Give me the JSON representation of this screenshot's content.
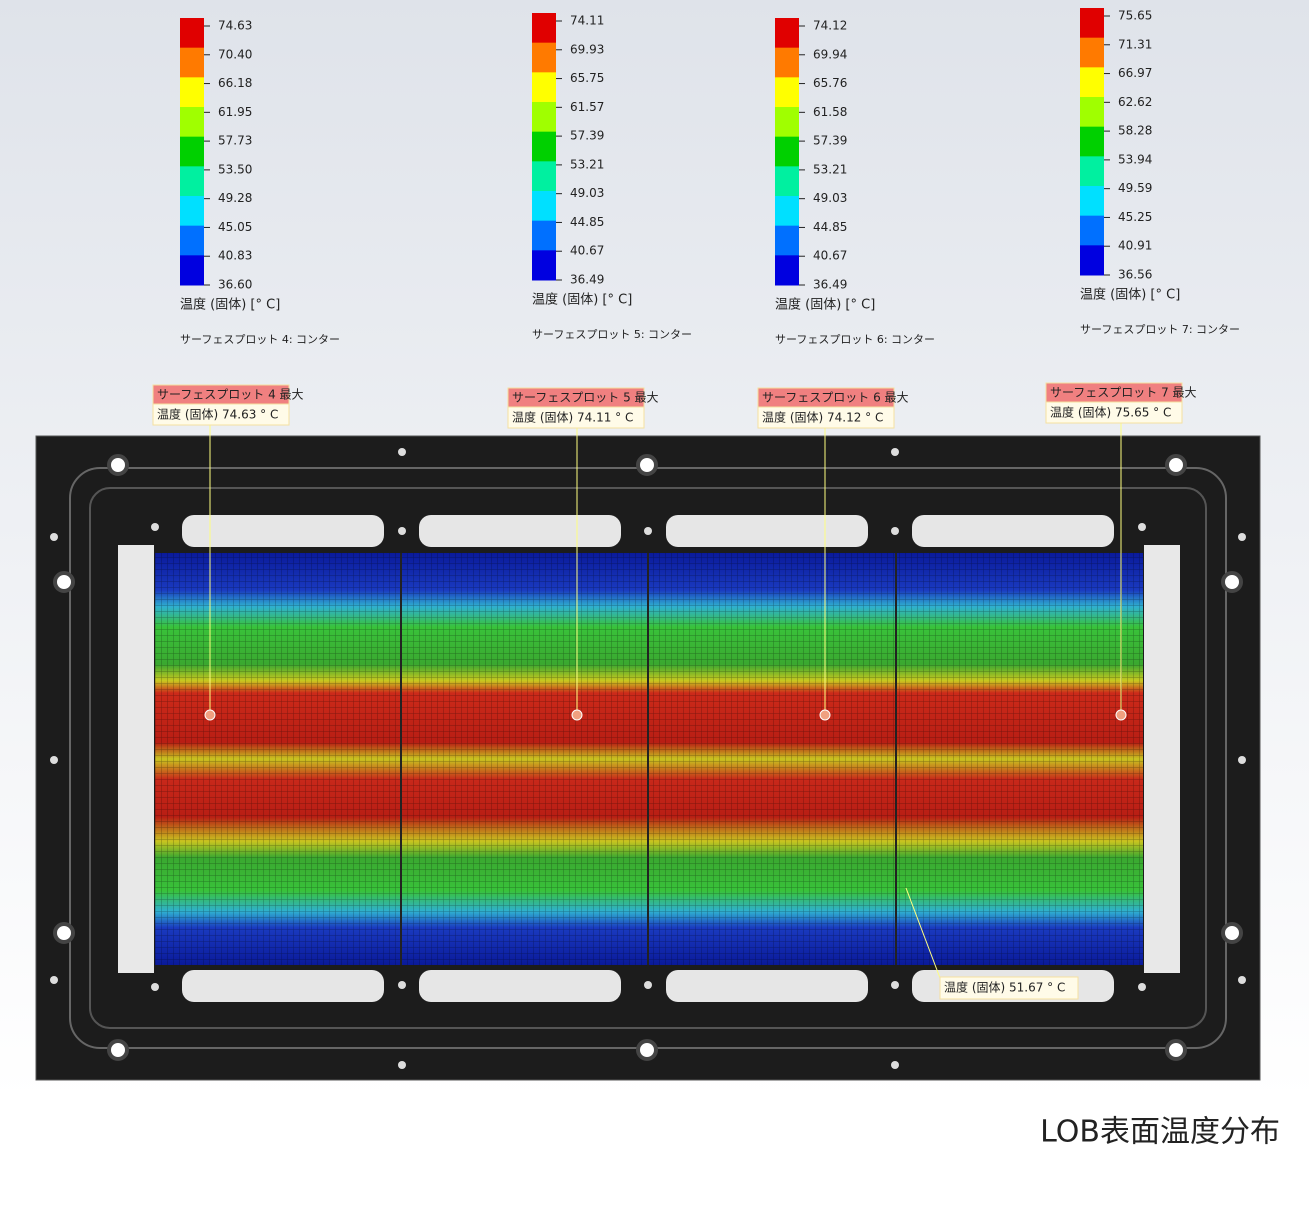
{
  "legends": [
    {
      "ticks": [
        "74.63",
        "70.40",
        "66.18",
        "61.95",
        "57.73",
        "53.50",
        "49.28",
        "45.05",
        "40.83",
        "36.60"
      ],
      "unit": "温度 (固体) [° C]",
      "plot": "サーフェスプロット 4: コンター"
    },
    {
      "ticks": [
        "74.11",
        "69.93",
        "65.75",
        "61.57",
        "57.39",
        "53.21",
        "49.03",
        "44.85",
        "40.67",
        "36.49"
      ],
      "unit": "温度 (固体) [° C]",
      "plot": "サーフェスプロット 5: コンター"
    },
    {
      "ticks": [
        "74.12",
        "69.94",
        "65.76",
        "61.58",
        "57.39",
        "53.21",
        "49.03",
        "44.85",
        "40.67",
        "36.49"
      ],
      "unit": "温度 (固体) [° C]",
      "plot": "サーフェスプロット 6: コンター"
    },
    {
      "ticks": [
        "75.65",
        "71.31",
        "66.97",
        "62.62",
        "58.28",
        "53.94",
        "49.59",
        "45.25",
        "40.91",
        "36.56"
      ],
      "unit": "温度 (固体) [° C]",
      "plot": "サーフェスプロット 7: コンター"
    }
  ],
  "callouts": [
    {
      "title": "サーフェスプロット 4 最大",
      "text": "温度 (固体) 74.63 ° C"
    },
    {
      "title": "サーフェスプロット 5 最大",
      "text": "温度 (固体) 74.11 ° C"
    },
    {
      "title": "サーフェスプロット 6 最大",
      "text": "温度 (固体) 74.12 ° C"
    },
    {
      "title": "サーフェスプロット 7 最大",
      "text": "温度 (固体) 75.65 ° C"
    }
  ],
  "probe": "温度 (固体) 51.67 ° C",
  "caption": "LOB表面温度分布"
}
